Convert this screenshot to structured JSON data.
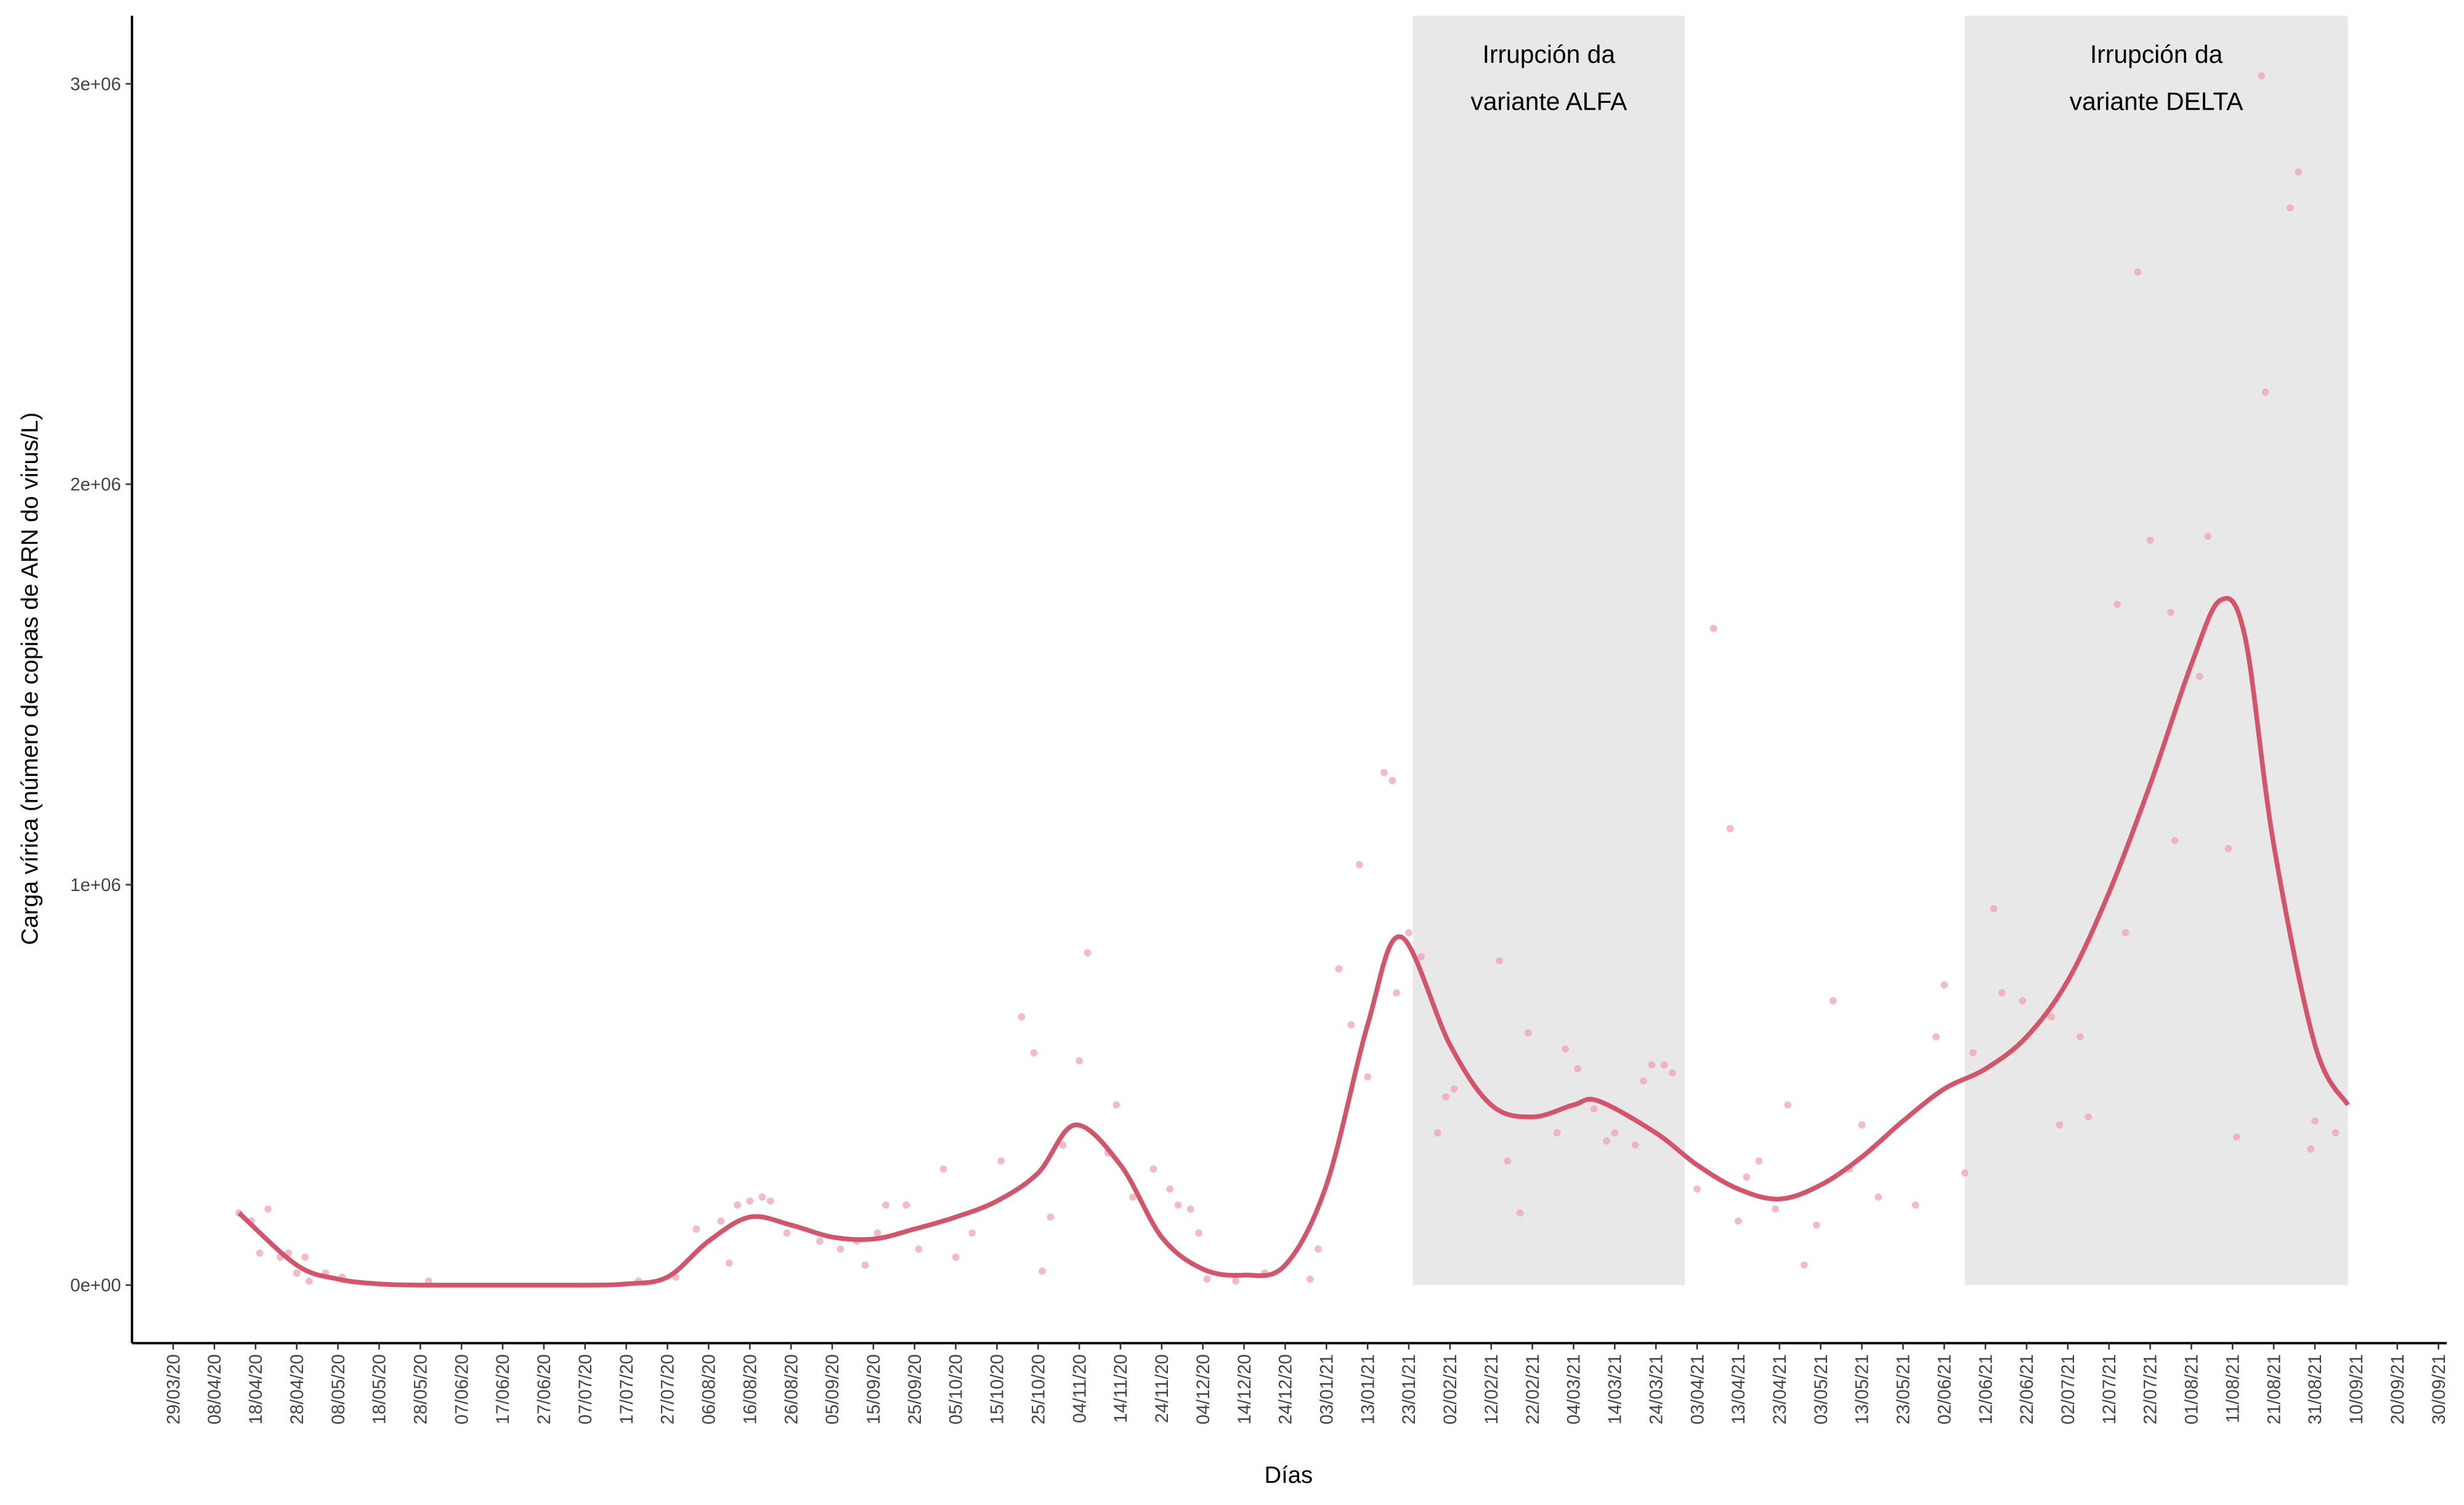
{
  "chart_data": {
    "type": "line",
    "x_label": "Días",
    "y_label": "Carga vírica (número de copias de ARN do virus/L)",
    "xlim": [
      "2020-03-19",
      "2021-10-02"
    ],
    "ylim": [
      -145000,
      3170000
    ],
    "xticks": [
      {
        "value": "2020-03-29",
        "label": "29/03/20"
      },
      {
        "value": "2020-04-08",
        "label": "08/04/20"
      },
      {
        "value": "2020-04-18",
        "label": "18/04/20"
      },
      {
        "value": "2020-04-28",
        "label": "28/04/20"
      },
      {
        "value": "2020-05-08",
        "label": "08/05/20"
      },
      {
        "value": "2020-05-18",
        "label": "18/05/20"
      },
      {
        "value": "2020-05-28",
        "label": "28/05/20"
      },
      {
        "value": "2020-06-07",
        "label": "07/06/20"
      },
      {
        "value": "2020-06-17",
        "label": "17/06/20"
      },
      {
        "value": "2020-06-27",
        "label": "27/06/20"
      },
      {
        "value": "2020-07-07",
        "label": "07/07/20"
      },
      {
        "value": "2020-07-17",
        "label": "17/07/20"
      },
      {
        "value": "2020-07-27",
        "label": "27/07/20"
      },
      {
        "value": "2020-08-06",
        "label": "06/08/20"
      },
      {
        "value": "2020-08-16",
        "label": "16/08/20"
      },
      {
        "value": "2020-08-26",
        "label": "26/08/20"
      },
      {
        "value": "2020-09-05",
        "label": "05/09/20"
      },
      {
        "value": "2020-09-15",
        "label": "15/09/20"
      },
      {
        "value": "2020-09-25",
        "label": "25/09/20"
      },
      {
        "value": "2020-10-05",
        "label": "05/10/20"
      },
      {
        "value": "2020-10-15",
        "label": "15/10/20"
      },
      {
        "value": "2020-10-25",
        "label": "25/10/20"
      },
      {
        "value": "2020-11-04",
        "label": "04/11/20"
      },
      {
        "value": "2020-11-14",
        "label": "14/11/20"
      },
      {
        "value": "2020-11-24",
        "label": "24/11/20"
      },
      {
        "value": "2020-12-04",
        "label": "04/12/20"
      },
      {
        "value": "2020-12-14",
        "label": "14/12/20"
      },
      {
        "value": "2020-12-24",
        "label": "24/12/20"
      },
      {
        "value": "2021-01-03",
        "label": "03/01/21"
      },
      {
        "value": "2021-01-13",
        "label": "13/01/21"
      },
      {
        "value": "2021-01-23",
        "label": "23/01/21"
      },
      {
        "value": "2021-02-02",
        "label": "02/02/21"
      },
      {
        "value": "2021-02-12",
        "label": "12/02/21"
      },
      {
        "value": "2021-02-22",
        "label": "22/02/21"
      },
      {
        "value": "2021-03-04",
        "label": "04/03/21"
      },
      {
        "value": "2021-03-14",
        "label": "14/03/21"
      },
      {
        "value": "2021-03-24",
        "label": "24/03/21"
      },
      {
        "value": "2021-04-03",
        "label": "03/04/21"
      },
      {
        "value": "2021-04-13",
        "label": "13/04/21"
      },
      {
        "value": "2021-04-23",
        "label": "23/04/21"
      },
      {
        "value": "2021-05-03",
        "label": "03/05/21"
      },
      {
        "value": "2021-05-13",
        "label": "13/05/21"
      },
      {
        "value": "2021-05-23",
        "label": "23/05/21"
      },
      {
        "value": "2021-06-02",
        "label": "02/06/21"
      },
      {
        "value": "2021-06-12",
        "label": "12/06/21"
      },
      {
        "value": "2021-06-22",
        "label": "22/06/21"
      },
      {
        "value": "2021-07-02",
        "label": "02/07/21"
      },
      {
        "value": "2021-07-12",
        "label": "12/07/21"
      },
      {
        "value": "2021-07-22",
        "label": "22/07/21"
      },
      {
        "value": "2021-08-01",
        "label": "01/08/21"
      },
      {
        "value": "2021-08-11",
        "label": "11/08/21"
      },
      {
        "value": "2021-08-21",
        "label": "21/08/21"
      },
      {
        "value": "2021-08-31",
        "label": "31/08/21"
      },
      {
        "value": "2021-09-10",
        "label": "10/09/21"
      },
      {
        "value": "2021-09-20",
        "label": "20/09/21"
      },
      {
        "value": "2021-09-30",
        "label": "30/09/21"
      }
    ],
    "yticks": [
      {
        "value": 0,
        "label": "0e+00"
      },
      {
        "value": 1000000,
        "label": "1e+06"
      },
      {
        "value": 2000000,
        "label": "2e+06"
      },
      {
        "value": 3000000,
        "label": "3e+06"
      }
    ],
    "regions": [
      {
        "x": [
          "2021-01-24",
          "2021-03-31"
        ],
        "color": "#e8e8e8",
        "label": [
          "Irrupción da",
          "variante ALFA"
        ]
      },
      {
        "x": [
          "2021-06-07",
          "2021-09-08"
        ],
        "color": "#e8e8e8",
        "label": [
          "Irrupción da",
          "variante DELTA"
        ]
      }
    ],
    "series": [
      {
        "type": "scatter",
        "color": "#f2a3b5",
        "x": [
          "2020-04-14",
          "2020-04-17",
          "2020-04-19",
          "2020-04-21",
          "2020-04-24",
          "2020-04-26",
          "2020-04-28",
          "2020-04-30",
          "2020-05-01",
          "2020-05-05",
          "2020-05-09",
          "2020-05-30",
          "2020-07-20",
          "2020-07-29",
          "2020-08-03",
          "2020-08-09",
          "2020-08-11",
          "2020-08-13",
          "2020-08-16",
          "2020-08-19",
          "2020-08-21",
          "2020-08-25",
          "2020-09-02",
          "2020-09-07",
          "2020-09-11",
          "2020-09-13",
          "2020-09-16",
          "2020-09-18",
          "2020-09-23",
          "2020-09-26",
          "2020-10-02",
          "2020-10-05",
          "2020-10-09",
          "2020-10-16",
          "2020-10-21",
          "2020-10-24",
          "2020-10-26",
          "2020-10-28",
          "2020-10-31",
          "2020-11-04",
          "2020-11-06",
          "2020-11-11",
          "2020-11-13",
          "2020-11-17",
          "2020-11-22",
          "2020-11-26",
          "2020-11-28",
          "2020-12-01",
          "2020-12-03",
          "2020-12-05",
          "2020-12-12",
          "2020-12-19",
          "2020-12-30",
          "2021-01-01",
          "2021-01-06",
          "2021-01-09",
          "2021-01-11",
          "2021-01-13",
          "2021-01-17",
          "2021-01-19",
          "2021-01-20",
          "2021-01-23",
          "2021-01-26",
          "2021-01-30",
          "2021-02-01",
          "2021-02-03",
          "2021-02-14",
          "2021-02-16",
          "2021-02-19",
          "2021-02-21",
          "2021-02-28",
          "2021-03-02",
          "2021-03-05",
          "2021-03-09",
          "2021-03-12",
          "2021-03-14",
          "2021-03-19",
          "2021-03-21",
          "2021-03-23",
          "2021-03-26",
          "2021-03-28",
          "2021-04-03",
          "2021-04-07",
          "2021-04-11",
          "2021-04-13",
          "2021-04-15",
          "2021-04-18",
          "2021-04-22",
          "2021-04-25",
          "2021-04-29",
          "2021-05-02",
          "2021-05-06",
          "2021-05-10",
          "2021-05-13",
          "2021-05-17",
          "2021-05-26",
          "2021-05-31",
          "2021-06-02",
          "2021-06-07",
          "2021-06-09",
          "2021-06-14",
          "2021-06-16",
          "2021-06-21",
          "2021-06-28",
          "2021-06-30",
          "2021-07-05",
          "2021-07-07",
          "2021-07-14",
          "2021-07-16",
          "2021-07-19",
          "2021-07-22",
          "2021-07-27",
          "2021-07-28",
          "2021-08-03",
          "2021-08-05",
          "2021-08-10",
          "2021-08-12",
          "2021-08-18",
          "2021-08-19",
          "2021-08-25",
          "2021-08-27",
          "2021-08-30",
          "2021-08-31",
          "2021-09-05"
        ],
        "values": [
          180000,
          160000,
          80000,
          190000,
          70000,
          80000,
          30000,
          70000,
          10000,
          30000,
          20000,
          10000,
          10000,
          20000,
          140000,
          160000,
          55000,
          200000,
          210000,
          220000,
          210000,
          130000,
          110000,
          90000,
          110000,
          50000,
          130000,
          200000,
          200000,
          90000,
          290000,
          70000,
          130000,
          310000,
          670000,
          580000,
          35000,
          170000,
          350000,
          560000,
          830000,
          330000,
          450000,
          220000,
          290000,
          240000,
          200000,
          190000,
          130000,
          15000,
          10000,
          30000,
          15000,
          90000,
          790000,
          650000,
          1050000,
          520000,
          1280000,
          1260000,
          730000,
          880000,
          820000,
          380000,
          470000,
          490000,
          810000,
          310000,
          180000,
          630000,
          380000,
          590000,
          540000,
          440000,
          360000,
          380000,
          350000,
          510000,
          550000,
          550000,
          530000,
          240000,
          1640000,
          1140000,
          160000,
          270000,
          310000,
          190000,
          450000,
          50000,
          150000,
          710000,
          290000,
          400000,
          220000,
          200000,
          620000,
          750000,
          280000,
          580000,
          940000,
          730000,
          710000,
          670000,
          400000,
          620000,
          420000,
          1700000,
          880000,
          2530000,
          1860000,
          1680000,
          1110000,
          1520000,
          1870000,
          1090000,
          370000,
          3020000,
          2230000,
          2690000,
          2780000,
          340000,
          410000,
          380000
        ]
      },
      {
        "type": "line",
        "color": "#d4546a",
        "x": [
          "2020-04-14",
          "2020-04-28",
          "2020-05-08",
          "2020-05-18",
          "2020-05-28",
          "2020-06-17",
          "2020-07-07",
          "2020-07-17",
          "2020-07-27",
          "2020-08-06",
          "2020-08-16",
          "2020-08-26",
          "2020-09-05",
          "2020-09-15",
          "2020-09-25",
          "2020-10-05",
          "2020-10-15",
          "2020-10-25",
          "2020-11-03",
          "2020-11-14",
          "2020-11-24",
          "2020-12-04",
          "2020-12-14",
          "2020-12-24",
          "2021-01-03",
          "2021-01-13",
          "2021-01-21",
          "2021-02-02",
          "2021-02-12",
          "2021-02-22",
          "2021-03-04",
          "2021-03-10",
          "2021-03-24",
          "2021-04-03",
          "2021-04-13",
          "2021-04-23",
          "2021-05-03",
          "2021-05-13",
          "2021-05-23",
          "2021-06-02",
          "2021-06-12",
          "2021-06-22",
          "2021-07-02",
          "2021-07-12",
          "2021-07-22",
          "2021-08-01",
          "2021-08-08",
          "2021-08-14",
          "2021-08-21",
          "2021-08-31",
          "2021-09-08"
        ],
        "values": [
          180000,
          50000,
          15000,
          3000,
          0,
          0,
          0,
          3000,
          20000,
          110000,
          170000,
          150000,
          120000,
          115000,
          140000,
          170000,
          210000,
          280000,
          400000,
          300000,
          120000,
          40000,
          25000,
          50000,
          250000,
          650000,
          870000,
          600000,
          450000,
          420000,
          450000,
          460000,
          380000,
          300000,
          240000,
          215000,
          250000,
          320000,
          410000,
          490000,
          540000,
          620000,
          760000,
          980000,
          1250000,
          1550000,
          1710000,
          1620000,
          1100000,
          600000,
          450000
        ]
      }
    ]
  }
}
